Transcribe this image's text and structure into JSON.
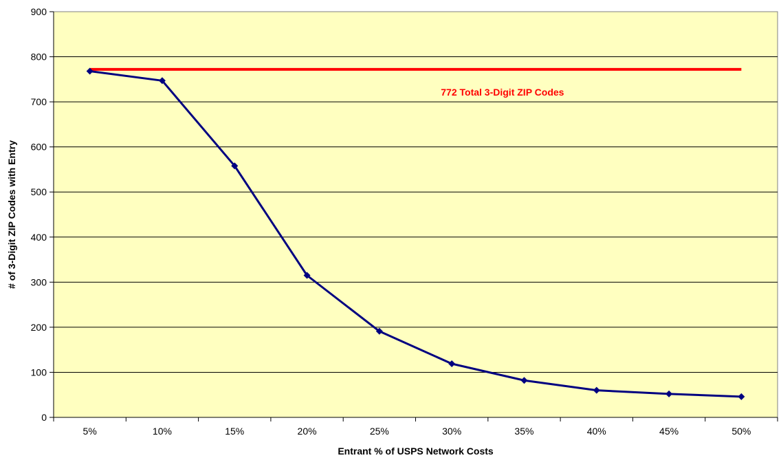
{
  "chart_data": {
    "type": "line",
    "title": "",
    "xlabel": "Entrant % of USPS Network Costs",
    "ylabel": "# of 3-Digit ZIP Codes with Entry",
    "categories": [
      "5%",
      "10%",
      "15%",
      "20%",
      "25%",
      "30%",
      "35%",
      "40%",
      "45%",
      "50%"
    ],
    "ylim": [
      0,
      900
    ],
    "yticks": [
      "0",
      "100",
      "200",
      "300",
      "400",
      "500",
      "600",
      "700",
      "800",
      "900"
    ],
    "grid": "horizontal",
    "series": [
      {
        "values": [
          768,
          747,
          558,
          315,
          191,
          119,
          82,
          60,
          52,
          46
        ],
        "color": "#000080"
      }
    ],
    "reference_line": {
      "value": 772,
      "label": "772 Total 3-Digit ZIP Codes",
      "color": "#ff0000"
    },
    "plot_background": "#ffffc0"
  }
}
